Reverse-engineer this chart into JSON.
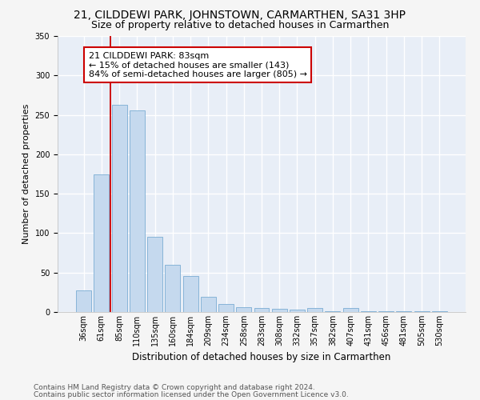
{
  "title": "21, CILDDEWI PARK, JOHNSTOWN, CARMARTHEN, SA31 3HP",
  "subtitle": "Size of property relative to detached houses in Carmarthen",
  "xlabel": "Distribution of detached houses by size in Carmarthen",
  "ylabel": "Number of detached properties",
  "categories": [
    "36sqm",
    "61sqm",
    "85sqm",
    "110sqm",
    "135sqm",
    "160sqm",
    "184sqm",
    "209sqm",
    "234sqm",
    "258sqm",
    "283sqm",
    "308sqm",
    "332sqm",
    "357sqm",
    "382sqm",
    "407sqm",
    "431sqm",
    "456sqm",
    "481sqm",
    "505sqm",
    "530sqm"
  ],
  "values": [
    27,
    175,
    263,
    256,
    95,
    60,
    46,
    19,
    10,
    6,
    5,
    4,
    3,
    5,
    1,
    5,
    1,
    1,
    1,
    1,
    1
  ],
  "bar_color": "#c5d9ee",
  "bar_edge_color": "#7aadd4",
  "vline_color": "#cc0000",
  "vline_index": 1.5,
  "annotation_box_text": "21 CILDDEWI PARK: 83sqm\n← 15% of detached houses are smaller (143)\n84% of semi-detached houses are larger (805) →",
  "footer_line1": "Contains HM Land Registry data © Crown copyright and database right 2024.",
  "footer_line2": "Contains public sector information licensed under the Open Government Licence v3.0.",
  "ylim": [
    0,
    350
  ],
  "plot_bg_color": "#e8eef7",
  "fig_bg_color": "#f5f5f5",
  "grid_color": "#ffffff",
  "title_fontsize": 10,
  "subtitle_fontsize": 9,
  "xlabel_fontsize": 8.5,
  "ylabel_fontsize": 8,
  "tick_fontsize": 7,
  "annotation_fontsize": 8,
  "footer_fontsize": 6.5
}
